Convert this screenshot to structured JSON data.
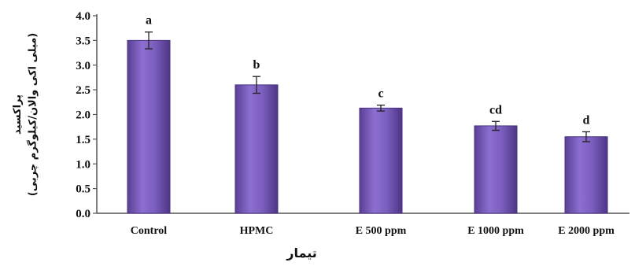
{
  "chart_data": {
    "type": "bar",
    "categories": [
      "Control",
      "HPMC",
      "E 500 ppm",
      "E 1000 ppm",
      "E 2000 ppm"
    ],
    "values": [
      3.5,
      2.6,
      2.13,
      1.77,
      1.55
    ],
    "errors": [
      0.17,
      0.17,
      0.06,
      0.09,
      0.1
    ],
    "significance": [
      "a",
      "b",
      "c",
      "cd",
      "d"
    ],
    "ylabel_line1": "پراکسید",
    "ylabel_line2": "(میلی اکی والان/کیلوگرم چربی)",
    "xlabel": "تیمار",
    "yticks": [
      "0.0",
      "0.5",
      "1.0",
      "1.5",
      "2.0",
      "2.5",
      "3.0",
      "3.5",
      "4.0"
    ],
    "ylim": [
      0,
      4
    ],
    "bar_color": "#7b5fb8",
    "grid": false
  }
}
